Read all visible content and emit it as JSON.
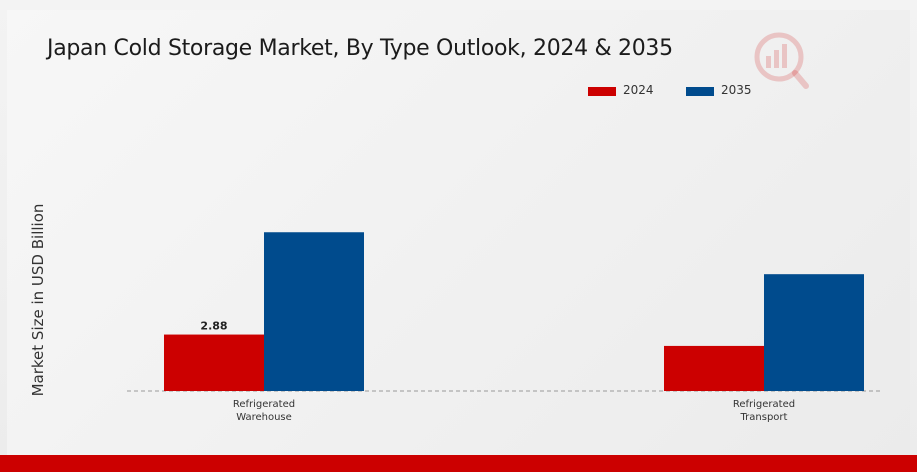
{
  "chart_data": {
    "type": "bar",
    "title": "Japan Cold Storage Market, By Type Outlook, 2024 & 2035",
    "xlabel": "",
    "ylabel": "Market Size in USD Billion",
    "categories": [
      "Refrigerated Warehouse",
      "Refrigerated Transport"
    ],
    "category_lines": [
      [
        "Refrigerated",
        "Warehouse"
      ],
      [
        "Refrigerated",
        "Transport"
      ]
    ],
    "series": [
      {
        "name": "2024",
        "color": "#cc0000",
        "values": [
          2.88,
          2.3
        ]
      },
      {
        "name": "2035",
        "color": "#004b8d",
        "values": [
          8.1,
          5.96
        ]
      }
    ],
    "data_labels": [
      {
        "series": 0,
        "index": 0,
        "text": "2.88"
      }
    ],
    "ylim": [
      0,
      10
    ],
    "grid": false,
    "legend_position": "top-right",
    "baseline_style": "dashed"
  },
  "logo": {
    "name": "brand-logo-icon",
    "color": "#cc0000"
  }
}
